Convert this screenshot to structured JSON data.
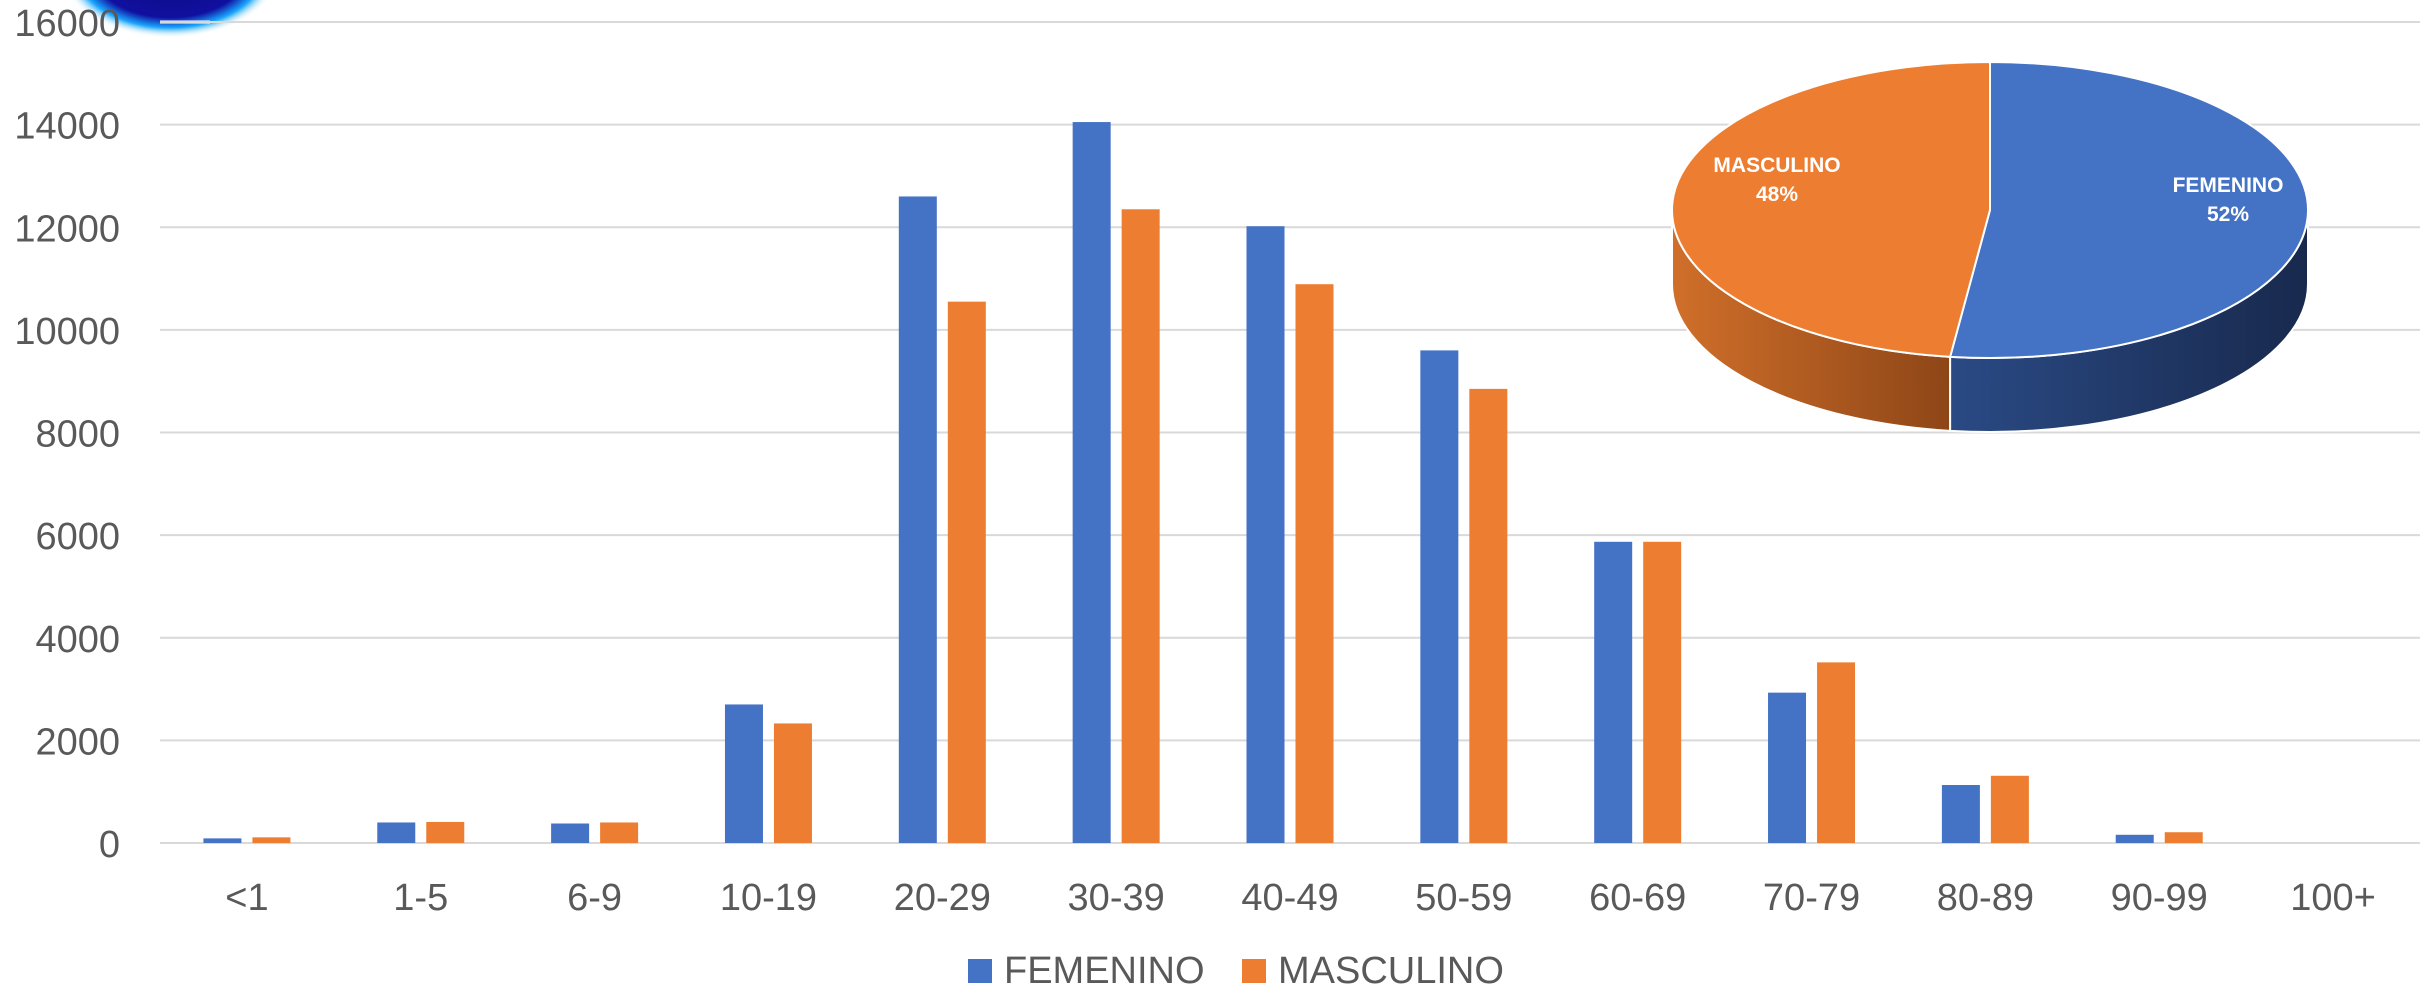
{
  "chart_data": [
    {
      "type": "bar",
      "categories": [
        "<1",
        "1-5",
        "6-9",
        "10-19",
        "20-29",
        "30-39",
        "40-49",
        "50-59",
        "60-69",
        "70-79",
        "80-89",
        "90-99",
        "100+"
      ],
      "series": [
        {
          "name": "FEMENINO",
          "color": "#4472C4",
          "values": [
            90,
            400,
            380,
            2700,
            12600,
            14050,
            12020,
            9600,
            5870,
            2930,
            1130,
            160,
            0
          ]
        },
        {
          "name": "MASCULINO",
          "color": "#ED7D31",
          "values": [
            110,
            410,
            400,
            2330,
            10550,
            12350,
            10890,
            8850,
            5870,
            3520,
            1310,
            210,
            0
          ]
        }
      ],
      "ylim": [
        0,
        16000
      ],
      "yticks": [
        "0",
        "2000",
        "4000",
        "6000",
        "8000",
        "10000",
        "12000",
        "14000",
        "16000"
      ],
      "grid": true,
      "legend": "bottom",
      "title": "",
      "xlabel": "",
      "ylabel": ""
    },
    {
      "type": "pie",
      "slices": [
        {
          "label": "FEMENINO",
          "percent_text": "52%",
          "value": 52,
          "color": "#4472C4"
        },
        {
          "label": "MASCULINO",
          "percent_text": "48%",
          "value": 48,
          "color": "#ED7D31"
        }
      ],
      "style": "3d"
    }
  ],
  "colors": {
    "femenino": "#4472C4",
    "masculino": "#ED7D31",
    "femenino_side": "#1F3867",
    "masculino_side": "#A85722",
    "gridline": "#D9D9D9",
    "axis_text": "#595959"
  }
}
